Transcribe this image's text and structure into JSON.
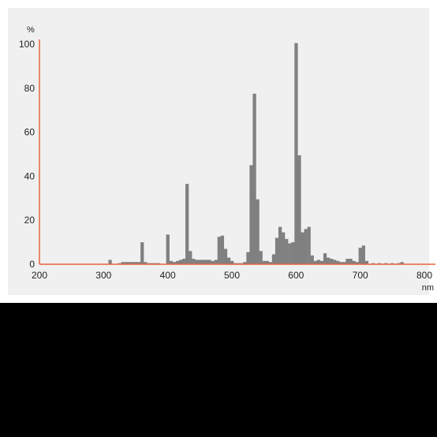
{
  "colors": {
    "panel_background": "#f0f0f0",
    "bar": "#808080",
    "axis": "#e8643c",
    "lower_area": "#000000"
  },
  "chart_data": {
    "type": "bar",
    "title": "",
    "xlabel": "nm",
    "ylabel": "%",
    "xlim": [
      200,
      800
    ],
    "ylim": [
      0,
      100
    ],
    "grid": false,
    "x_ticks": [
      "200",
      "300",
      "400",
      "500",
      "600",
      "700",
      "800"
    ],
    "y_ticks": [
      "0",
      "20",
      "40",
      "60",
      "80",
      "100"
    ],
    "bin_width_nm": 5,
    "series": [
      {
        "x": [
          310,
          325,
          330,
          335,
          340,
          345,
          350,
          355,
          360,
          365,
          370,
          375,
          380,
          385,
          400,
          405,
          410,
          415,
          420,
          425,
          430,
          435,
          440,
          445,
          450,
          455,
          460,
          465,
          470,
          475,
          480,
          485,
          490,
          495,
          500,
          505,
          510,
          515,
          520,
          525,
          530,
          535,
          540,
          545,
          550,
          555,
          560,
          565,
          570,
          575,
          580,
          585,
          590,
          595,
          600,
          605,
          610,
          615,
          620,
          625,
          630,
          635,
          640,
          645,
          650,
          655,
          660,
          665,
          670,
          675,
          680,
          685,
          690,
          695,
          700,
          705,
          710,
          720,
          730,
          740,
          750,
          760,
          765
        ],
        "values": [
          2,
          0.5,
          1,
          1,
          1,
          1,
          1,
          1,
          10,
          1,
          0.5,
          0.5,
          0.5,
          0.5,
          13.5,
          1.5,
          1,
          1.5,
          2,
          2.5,
          36.5,
          6,
          2.5,
          2,
          2,
          2,
          2,
          2,
          1.5,
          2,
          12.5,
          13,
          7,
          3,
          1.5,
          0.5,
          0.5,
          0.5,
          1,
          5.5,
          45,
          77.5,
          29.5,
          6,
          1.5,
          1.5,
          1,
          4.5,
          12,
          17,
          14.5,
          11.5,
          9.5,
          10,
          100.5,
          49.5,
          14.5,
          16,
          17,
          4,
          1.5,
          2,
          1.5,
          5,
          3,
          2.5,
          2,
          1.5,
          1,
          1,
          2.5,
          2.5,
          1.5,
          1,
          7.5,
          8.5,
          1.5,
          0.5,
          0.5,
          0.5,
          0.5,
          0.5,
          1
        ]
      }
    ]
  }
}
